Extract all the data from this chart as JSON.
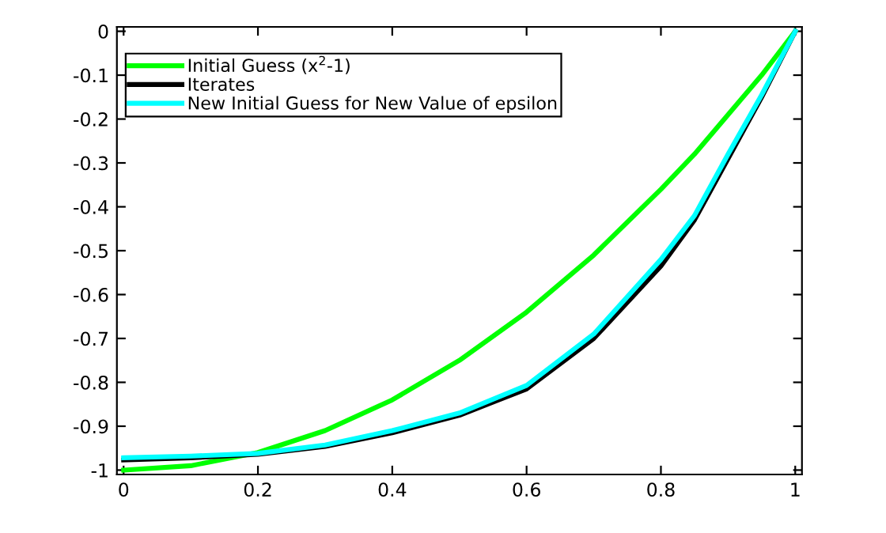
{
  "chart_data": {
    "type": "line",
    "x": [
      0,
      0.1,
      0.2,
      0.3,
      0.4,
      0.5,
      0.6,
      0.7,
      0.8,
      0.85,
      0.9,
      0.95,
      1
    ],
    "series": [
      {
        "name": "Initial Guess (x$^{2}$-1)",
        "color": "#00ff00",
        "values": [
          -1,
          -0.99,
          -0.96,
          -0.91,
          -0.84,
          -0.75,
          -0.64,
          -0.51,
          -0.36,
          -0.28,
          -0.19,
          -0.1,
          0
        ]
      },
      {
        "name": "Iterates",
        "color": "#000000",
        "values": [
          -0.977,
          -0.972,
          -0.964,
          -0.946,
          -0.915,
          -0.875,
          -0.815,
          -0.7,
          -0.535,
          -0.43,
          -0.29,
          -0.15,
          0
        ]
      },
      {
        "name": "New Initial Guess for New Value of epsilon",
        "color": "#00ffff",
        "values": [
          -0.972,
          -0.968,
          -0.962,
          -0.943,
          -0.91,
          -0.87,
          -0.807,
          -0.69,
          -0.52,
          -0.42,
          -0.28,
          -0.145,
          0
        ]
      }
    ],
    "xlim": [
      -0.01,
      1.01
    ],
    "ylim": [
      -1.01,
      0.01
    ],
    "xticks": [
      0,
      0.2,
      0.4,
      0.6,
      0.8,
      1
    ],
    "yticks": [
      {
        "value": 0,
        "label": "0"
      },
      {
        "value": -0.1,
        "label": "-0.1"
      },
      {
        "value": -0.2,
        "label": "-0.2"
      },
      {
        "value": -0.3,
        "label": "-0.3"
      },
      {
        "value": -0.4,
        "label": "-0.4"
      },
      {
        "value": -0.5,
        "label": "-0.5"
      },
      {
        "value": -0.6,
        "label": "-0.6"
      },
      {
        "value": -0.7,
        "label": "-0.7"
      },
      {
        "value": -0.8,
        "label": "-0.8"
      },
      {
        "value": -0.9,
        "label": "-0.9"
      },
      {
        "value": -1,
        "label": "-1"
      }
    ],
    "legend": "top left",
    "grid": false,
    "line_style": "solid",
    "marker": "none"
  }
}
